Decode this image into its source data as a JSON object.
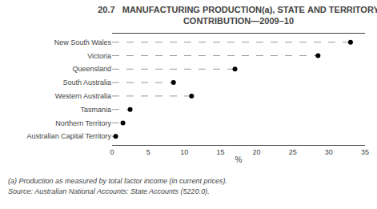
{
  "chart_data": {
    "type": "dot",
    "title": "20.7   MANUFACTURING PRODUCTION(a), STATE AND TERRITORY",
    "subtitle": "CONTRIBUTION—2009–10",
    "categories": [
      "New South Wales",
      "Victoria",
      "Queensland",
      "South Australia",
      "Western Australia",
      "Tasmania",
      "Northern Territory",
      "Australian Capital Territory"
    ],
    "values": [
      33.0,
      28.5,
      17.0,
      8.5,
      11.0,
      2.5,
      1.5,
      0.5
    ],
    "color": "#000000",
    "xlabel": "%",
    "xlim": [
      0,
      35
    ],
    "xticks": [
      0,
      5,
      10,
      15,
      20,
      25,
      30,
      35
    ],
    "grid": false,
    "annotations": [
      "(a) Production as measured by total factor income (in current prices).",
      "Source: Australian National Accounts: State Accounts (5220.0)."
    ]
  }
}
